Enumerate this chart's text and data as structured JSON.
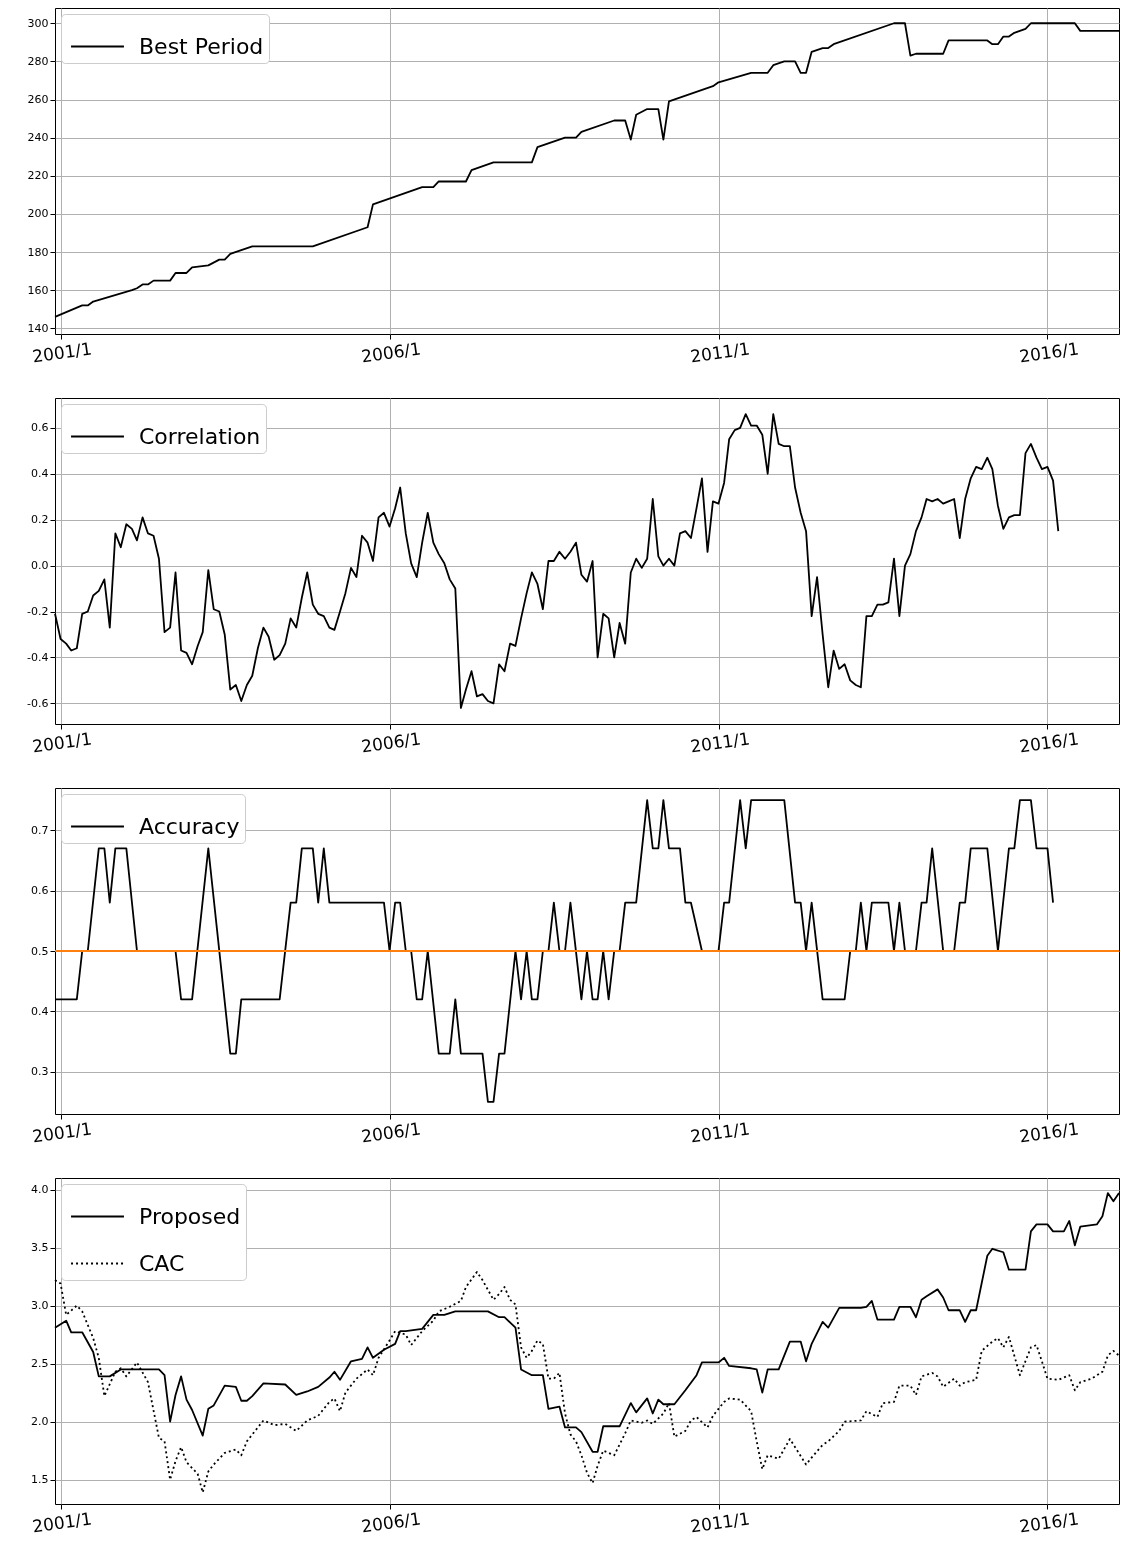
{
  "chart_data": [
    {
      "type": "line",
      "x": [
        "2000-12",
        "2001-05",
        "2001-06",
        "2001-07",
        "2002-02",
        "2002-03",
        "2002-04",
        "2002-05",
        "2002-06",
        "2002-09",
        "2002-10",
        "2002-12",
        "2003-01",
        "2003-04",
        "2003-06",
        "2003-07",
        "2003-08",
        "2003-12",
        "2004-11",
        "2005-09",
        "2005-10",
        "2006-07",
        "2006-09",
        "2006-10",
        "2007-03",
        "2007-04",
        "2007-08",
        "2008-03",
        "2008-04",
        "2008-09",
        "2008-11",
        "2008-12",
        "2009-06",
        "2009-08",
        "2009-09",
        "2009-10",
        "2009-12",
        "2010-02",
        "2010-03",
        "2010-04",
        "2010-12",
        "2011-01",
        "2011-07",
        "2011-10",
        "2011-11",
        "2012-01",
        "2012-03",
        "2012-04",
        "2012-05",
        "2012-06",
        "2012-08",
        "2012-09",
        "2012-10",
        "2013-09",
        "2013-11",
        "2013-12",
        "2014-01",
        "2014-06",
        "2014-07",
        "2015-02",
        "2015-03",
        "2015-04",
        "2015-05",
        "2015-06",
        "2015-07",
        "2015-09",
        "2015-10",
        "2016-06",
        "2016-07",
        "2017-02"
      ],
      "series": [
        {
          "name": "Best Period",
          "color": "#000000",
          "values": [
            146,
            152,
            152,
            154,
            160,
            161,
            163,
            163,
            165,
            165,
            169,
            169,
            172,
            173,
            176,
            176,
            179,
            183,
            183,
            193,
            205,
            214,
            214,
            217,
            217,
            223,
            227,
            227,
            235,
            240,
            240,
            243,
            249,
            249,
            239,
            252,
            255,
            255,
            239,
            259,
            267,
            269,
            274,
            274,
            278,
            280,
            280,
            274,
            274,
            285,
            287,
            287,
            289,
            300,
            300,
            283,
            284,
            284,
            291,
            291,
            289,
            289,
            293,
            293,
            295,
            297,
            300,
            300,
            296,
            296
          ]
        }
      ],
      "xlim": [
        "2000-12",
        "2017-02"
      ],
      "xticks": [
        {
          "value": "2001-01",
          "label": "2001/1"
        },
        {
          "value": "2006-01",
          "label": "2006/1"
        },
        {
          "value": "2011-01",
          "label": "2011/1"
        },
        {
          "value": "2016-01",
          "label": "2016/1"
        }
      ],
      "ylim": [
        137,
        308
      ],
      "yticks": [
        140,
        160,
        180,
        200,
        220,
        240,
        260,
        280,
        300
      ],
      "grid": true,
      "legend": "top left"
    },
    {
      "type": "line",
      "x": [
        "2000-12",
        "2001-01",
        "2001-02",
        "2001-03",
        "2001-04",
        "2001-05",
        "2001-06",
        "2001-07",
        "2001-08",
        "2001-09",
        "2001-10",
        "2001-11",
        "2001-12",
        "2002-01",
        "2002-02",
        "2002-03",
        "2002-04",
        "2002-05",
        "2002-06",
        "2002-07",
        "2002-08",
        "2002-09",
        "2002-10",
        "2002-11",
        "2002-12",
        "2003-01",
        "2003-02",
        "2003-03",
        "2003-04",
        "2003-05",
        "2003-06",
        "2003-07",
        "2003-08",
        "2003-09",
        "2003-10",
        "2003-11",
        "2003-12",
        "2004-01",
        "2004-02",
        "2004-03",
        "2004-04",
        "2004-05",
        "2004-06",
        "2004-07",
        "2004-08",
        "2004-09",
        "2004-10",
        "2004-11",
        "2004-12",
        "2005-01",
        "2005-02",
        "2005-03",
        "2005-04",
        "2005-05",
        "2005-06",
        "2005-07",
        "2005-08",
        "2005-09",
        "2005-10",
        "2005-11",
        "2005-12",
        "2006-01",
        "2006-02",
        "2006-03",
        "2006-04",
        "2006-05",
        "2006-06",
        "2006-07",
        "2006-08",
        "2006-09",
        "2006-10",
        "2006-11",
        "2006-12",
        "2007-01",
        "2007-02",
        "2007-03",
        "2007-04",
        "2007-05",
        "2007-06",
        "2007-07",
        "2007-08",
        "2007-09",
        "2007-10",
        "2007-11",
        "2007-12",
        "2008-01",
        "2008-02",
        "2008-03",
        "2008-04",
        "2008-05",
        "2008-06",
        "2008-07",
        "2008-08",
        "2008-09",
        "2008-10",
        "2008-11",
        "2008-12",
        "2009-01",
        "2009-02",
        "2009-03",
        "2009-04",
        "2009-05",
        "2009-06",
        "2009-07",
        "2009-08",
        "2009-09",
        "2009-10",
        "2009-11",
        "2009-12",
        "2010-01",
        "2010-02",
        "2010-03",
        "2010-04",
        "2010-05",
        "2010-06",
        "2010-07",
        "2010-08",
        "2010-09",
        "2010-10",
        "2010-11",
        "2010-12",
        "2011-01",
        "2011-02",
        "2011-03",
        "2011-04",
        "2011-05",
        "2011-06",
        "2011-07",
        "2011-08",
        "2011-09",
        "2011-10",
        "2011-11",
        "2011-12",
        "2012-01",
        "2012-02",
        "2012-03",
        "2012-04",
        "2012-05",
        "2012-06",
        "2012-07",
        "2012-08",
        "2012-09",
        "2012-10",
        "2012-11",
        "2012-12",
        "2013-01",
        "2013-02",
        "2013-03",
        "2013-04",
        "2013-05",
        "2013-06",
        "2013-07",
        "2013-08",
        "2013-09",
        "2013-10",
        "2013-11",
        "2013-12",
        "2014-01",
        "2014-02",
        "2014-03",
        "2014-04",
        "2014-05",
        "2014-06",
        "2014-07",
        "2014-08",
        "2014-09",
        "2014-10",
        "2014-11",
        "2014-12",
        "2015-01",
        "2015-02",
        "2015-03",
        "2015-04",
        "2015-05",
        "2015-06",
        "2015-07",
        "2015-08",
        "2015-09",
        "2015-10",
        "2015-11",
        "2015-12",
        "2016-01",
        "2016-02",
        "2016-03"
      ],
      "series": [
        {
          "name": "Correlation",
          "color": "#000000",
          "values": [
            -0.21,
            -0.32,
            -0.34,
            -0.37,
            -0.36,
            -0.21,
            -0.2,
            -0.13,
            -0.11,
            -0.06,
            -0.27,
            0.14,
            0.08,
            0.18,
            0.16,
            0.11,
            0.21,
            0.14,
            0.13,
            0.03,
            -0.29,
            -0.27,
            -0.03,
            -0.37,
            -0.38,
            -0.43,
            -0.35,
            -0.29,
            -0.02,
            -0.19,
            -0.2,
            -0.3,
            -0.54,
            -0.52,
            -0.59,
            -0.52,
            -0.48,
            -0.36,
            -0.27,
            -0.31,
            -0.41,
            -0.39,
            -0.34,
            -0.23,
            -0.27,
            -0.14,
            -0.03,
            -0.17,
            -0.21,
            -0.22,
            -0.27,
            -0.28,
            -0.2,
            -0.12,
            -0.01,
            -0.05,
            0.13,
            0.1,
            0.02,
            0.21,
            0.23,
            0.17,
            0.25,
            0.34,
            0.14,
            0.01,
            -0.05,
            0.1,
            0.23,
            0.1,
            0.05,
            0.01,
            -0.06,
            -0.1,
            -0.62,
            -0.54,
            -0.46,
            -0.57,
            -0.56,
            -0.59,
            -0.6,
            -0.43,
            -0.46,
            -0.34,
            -0.35,
            -0.23,
            -0.12,
            -0.03,
            -0.08,
            -0.19,
            0.02,
            0.02,
            0.06,
            0.03,
            0.06,
            0.1,
            -0.04,
            -0.07,
            0.02,
            -0.4,
            -0.21,
            -0.23,
            -0.4,
            -0.25,
            -0.34,
            -0.03,
            0.03,
            -0.01,
            0.03,
            0.29,
            0.04,
            0.0,
            0.03,
            0.0,
            0.14,
            0.15,
            0.12,
            0.25,
            0.38,
            0.06,
            0.28,
            0.27,
            0.36,
            0.55,
            0.59,
            0.6,
            0.66,
            0.61,
            0.61,
            0.57,
            0.4,
            0.66,
            0.53,
            0.52,
            0.52,
            0.34,
            0.23,
            0.15,
            -0.22,
            -0.05,
            -0.3,
            -0.53,
            -0.37,
            -0.45,
            -0.43,
            -0.5,
            -0.52,
            -0.53,
            -0.22,
            -0.22,
            -0.17,
            -0.17,
            -0.16,
            0.03,
            -0.22,
            0.0,
            0.05,
            0.15,
            0.21,
            0.29,
            0.28,
            0.29,
            0.27,
            0.28,
            0.29,
            0.12,
            0.29,
            0.38,
            0.43,
            0.42,
            0.47,
            0.42,
            0.26,
            0.16,
            0.21,
            0.22,
            0.22,
            0.49,
            0.53,
            0.47,
            0.42,
            0.43,
            0.37,
            0.15
          ]
        }
      ],
      "xlim": [
        "2000-12",
        "2017-02"
      ],
      "xticks": [
        {
          "value": "2001-01",
          "label": "2001/1"
        },
        {
          "value": "2006-01",
          "label": "2006/1"
        },
        {
          "value": "2011-01",
          "label": "2011/1"
        },
        {
          "value": "2016-01",
          "label": "2016/1"
        }
      ],
      "ylim": [
        -0.69,
        0.73
      ],
      "yticks": [
        -0.6,
        -0.4,
        -0.2,
        {
          "value": 0,
          "label": "0.0"
        },
        0.2,
        0.4,
        0.6
      ],
      "grid": true,
      "legend": "top left"
    },
    {
      "type": "line",
      "x": [
        "2000-12",
        "2001-04",
        "2001-05",
        "2001-06",
        "2001-08",
        "2001-09",
        "2001-10",
        "2001-11",
        "2002-01",
        "2002-03",
        "2002-10",
        "2002-11",
        "2003-01",
        "2003-04",
        "2003-08",
        "2003-09",
        "2003-10",
        "2004-05",
        "2004-07",
        "2004-08",
        "2004-09",
        "2004-11",
        "2004-12",
        "2005-01",
        "2005-02",
        "2005-12",
        "2006-01",
        "2006-02",
        "2006-03",
        "2006-04",
        "2006-05",
        "2006-06",
        "2006-07",
        "2006-08",
        "2006-10",
        "2006-12",
        "2007-01",
        "2007-02",
        "2007-06",
        "2007-07",
        "2007-08",
        "2007-09",
        "2007-10",
        "2007-12",
        "2008-01",
        "2008-02",
        "2008-03",
        "2008-04",
        "2008-05",
        "2008-06",
        "2008-07",
        "2008-08",
        "2008-09",
        "2008-10",
        "2008-12",
        "2009-01",
        "2009-02",
        "2009-03",
        "2009-04",
        "2009-05",
        "2009-06",
        "2009-07",
        "2009-08",
        "2009-10",
        "2009-12",
        "2010-01",
        "2010-02",
        "2010-03",
        "2010-04",
        "2010-06",
        "2010-07",
        "2010-08",
        "2010-10",
        "2011-01",
        "2011-02",
        "2011-03",
        "2011-05",
        "2011-06",
        "2011-07",
        "2012-01",
        "2012-03",
        "2012-04",
        "2012-05",
        "2012-06",
        "2012-08",
        "2012-12",
        "2013-01",
        "2013-02",
        "2013-03",
        "2013-04",
        "2013-05",
        "2013-08",
        "2013-09",
        "2013-10",
        "2013-11",
        "2014-01",
        "2014-02",
        "2014-03",
        "2014-04",
        "2014-06",
        "2014-08",
        "2014-09",
        "2014-10",
        "2014-11",
        "2015-02",
        "2015-04",
        "2015-06",
        "2015-07",
        "2015-08",
        "2015-10",
        "2015-11",
        "2016-01",
        "2016-02"
      ],
      "series": [
        {
          "name": "Accuracy",
          "color": "#000000",
          "values": [
            0.42,
            0.42,
            0.5,
            0.5,
            0.67,
            0.67,
            0.58,
            0.67,
            0.67,
            0.5,
            0.5,
            0.42,
            0.42,
            0.67,
            0.33,
            0.33,
            0.42,
            0.42,
            0.58,
            0.58,
            0.67,
            0.67,
            0.58,
            0.67,
            0.58,
            0.58,
            0.5,
            0.58,
            0.58,
            0.5,
            0.5,
            0.42,
            0.42,
            0.5,
            0.33,
            0.33,
            0.42,
            0.33,
            0.33,
            0.25,
            0.25,
            0.33,
            0.33,
            0.5,
            0.42,
            0.5,
            0.42,
            0.42,
            0.5,
            0.5,
            0.58,
            0.5,
            0.5,
            0.58,
            0.42,
            0.5,
            0.42,
            0.42,
            0.5,
            0.42,
            0.5,
            0.5,
            0.58,
            0.58,
            0.75,
            0.67,
            0.67,
            0.75,
            0.67,
            0.67,
            0.58,
            0.58,
            0.5,
            0.5,
            0.58,
            0.58,
            0.75,
            0.67,
            0.75,
            0.75,
            0.58,
            0.58,
            0.5,
            0.58,
            0.42,
            0.42,
            0.5,
            0.5,
            0.58,
            0.5,
            0.58,
            0.58,
            0.5,
            0.58,
            0.5,
            0.5,
            0.58,
            0.58,
            0.67,
            0.5,
            0.5,
            0.58,
            0.58,
            0.67,
            0.67,
            0.5,
            0.67,
            0.67,
            0.75,
            0.75,
            0.67,
            0.67,
            0.58
          ]
        }
      ],
      "xlim": [
        "2000-12",
        "2017-02"
      ],
      "xticks": [
        {
          "value": "2001-01",
          "label": "2001/1"
        },
        {
          "value": "2006-01",
          "label": "2006/1"
        },
        {
          "value": "2011-01",
          "label": "2011/1"
        },
        {
          "value": "2016-01",
          "label": "2016/1"
        }
      ],
      "ylim": [
        0.23,
        0.77
      ],
      "yticks": [
        0.3,
        0.4,
        0.5,
        0.6,
        0.7
      ],
      "ref_lines": [
        {
          "axis": "y",
          "value": 0.5,
          "color": "#ff7f0e"
        }
      ],
      "grid": true,
      "legend": "top left"
    },
    {
      "type": "line",
      "series": [
        {
          "name": "Proposed",
          "color": "#000000",
          "line_style": "solid",
          "x": [
            "2000-12",
            "2001-02",
            "2001-03",
            "2001-05",
            "2001-07",
            "2001-08",
            "2001-10",
            "2001-12",
            "2002-07",
            "2002-08",
            "2002-09",
            "2002-10",
            "2002-11",
            "2002-12",
            "2003-01",
            "2003-03",
            "2003-04",
            "2003-05",
            "2003-07",
            "2003-09",
            "2003-10",
            "2003-11",
            "2003-12",
            "2004-02",
            "2004-06",
            "2004-08",
            "2004-10",
            "2004-12",
            "2005-02",
            "2005-03",
            "2005-04",
            "2005-06",
            "2005-08",
            "2005-09",
            "2005-10",
            "2005-12",
            "2006-02",
            "2006-03",
            "2006-04",
            "2006-07",
            "2006-09",
            "2006-11",
            "2007-01",
            "2007-07",
            "2007-09",
            "2007-10",
            "2007-12",
            "2008-01",
            "2008-03",
            "2008-05",
            "2008-06",
            "2008-08",
            "2008-09",
            "2008-11",
            "2008-12",
            "2009-02",
            "2009-03",
            "2009-04",
            "2009-07",
            "2009-09",
            "2009-10",
            "2009-12",
            "2010-01",
            "2010-02",
            "2010-03",
            "2010-05",
            "2010-07",
            "2010-09",
            "2010-10",
            "2011-01",
            "2011-02",
            "2011-03",
            "2011-07",
            "2011-08",
            "2011-09",
            "2011-10",
            "2011-12",
            "2012-02",
            "2012-04",
            "2012-05",
            "2012-06",
            "2012-08",
            "2012-09",
            "2012-11",
            "2013-03",
            "2013-04",
            "2013-05",
            "2013-06",
            "2013-09",
            "2013-10",
            "2013-12",
            "2014-01",
            "2014-02",
            "2014-03",
            "2014-05",
            "2014-06",
            "2014-07",
            "2014-09",
            "2014-10",
            "2014-11",
            "2014-12",
            "2015-02",
            "2015-03",
            "2015-05",
            "2015-06",
            "2015-09",
            "2015-10",
            "2015-11",
            "2016-01",
            "2016-02",
            "2016-04",
            "2016-05",
            "2016-06",
            "2016-07",
            "2016-10",
            "2016-11",
            "2016-12",
            "2017-01",
            "2017-02"
          ],
          "values": [
            2.81,
            2.87,
            2.77,
            2.77,
            2.6,
            2.39,
            2.39,
            2.45,
            2.45,
            2.4,
            2.0,
            2.23,
            2.39,
            2.19,
            2.1,
            1.88,
            2.11,
            2.14,
            2.31,
            2.3,
            2.18,
            2.18,
            2.22,
            2.33,
            2.32,
            2.23,
            2.26,
            2.3,
            2.38,
            2.43,
            2.36,
            2.52,
            2.54,
            2.64,
            2.55,
            2.62,
            2.67,
            2.78,
            2.78,
            2.8,
            2.92,
            2.92,
            2.95,
            2.95,
            2.9,
            2.9,
            2.81,
            2.45,
            2.4,
            2.4,
            2.11,
            2.13,
            1.95,
            1.95,
            1.91,
            1.74,
            1.74,
            1.96,
            1.96,
            2.16,
            2.08,
            2.2,
            2.07,
            2.19,
            2.15,
            2.15,
            2.27,
            2.4,
            2.51,
            2.51,
            2.55,
            2.48,
            2.46,
            2.45,
            2.25,
            2.45,
            2.45,
            2.69,
            2.69,
            2.52,
            2.67,
            2.86,
            2.81,
            2.98,
            2.98,
            2.99,
            3.04,
            2.88,
            2.88,
            2.99,
            2.99,
            2.9,
            3.05,
            3.08,
            3.14,
            3.07,
            2.96,
            2.96,
            2.86,
            2.96,
            2.96,
            3.43,
            3.49,
            3.46,
            3.31,
            3.31,
            3.64,
            3.7,
            3.7,
            3.64,
            3.64,
            3.73,
            3.52,
            3.68,
            3.7,
            3.77,
            3.97,
            3.9,
            3.97
          ]
        },
        {
          "name": "CAC",
          "color": "#000000",
          "line_style": "dotted",
          "x": [
            "2000-12",
            "2001-01",
            "2001-02",
            "2001-04",
            "2001-05",
            "2001-07",
            "2001-08",
            "2001-09",
            "2001-11",
            "2001-12",
            "2002-01",
            "2002-03",
            "2002-05",
            "2002-07",
            "2002-08",
            "2002-09",
            "2002-10",
            "2002-11",
            "2002-12",
            "2003-02",
            "2003-03",
            "2003-04",
            "2003-05",
            "2003-07",
            "2003-09",
            "2003-10",
            "2003-11",
            "2004-01",
            "2004-02",
            "2004-04",
            "2004-06",
            "2004-08",
            "2004-10",
            "2004-12",
            "2005-02",
            "2005-03",
            "2005-04",
            "2005-05",
            "2005-07",
            "2005-09",
            "2005-10",
            "2005-11",
            "2006-01",
            "2006-02",
            "2006-04",
            "2006-05",
            "2006-07",
            "2006-09",
            "2006-10",
            "2006-12",
            "2007-02",
            "2007-03",
            "2007-05",
            "2007-06",
            "2007-08",
            "2007-09",
            "2007-10",
            "2007-11",
            "2007-12",
            "2008-01",
            "2008-02",
            "2008-03",
            "2008-04",
            "2008-05",
            "2008-06",
            "2008-07",
            "2008-08",
            "2008-09",
            "2008-10",
            "2008-11",
            "2008-12",
            "2009-01",
            "2009-02",
            "2009-03",
            "2009-04",
            "2009-06",
            "2009-08",
            "2009-09",
            "2009-11",
            "2009-12",
            "2010-01",
            "2010-03",
            "2010-04",
            "2010-05",
            "2010-07",
            "2010-08",
            "2010-09",
            "2010-11",
            "2010-12",
            "2011-02",
            "2011-03",
            "2011-05",
            "2011-07",
            "2011-08",
            "2011-09",
            "2011-10",
            "2011-12",
            "2012-02",
            "2012-03",
            "2012-05",
            "2012-06",
            "2012-08",
            "2012-09",
            "2012-11",
            "2012-12",
            "2013-03",
            "2013-04",
            "2013-06",
            "2013-07",
            "2013-09",
            "2013-10",
            "2013-12",
            "2014-01",
            "2014-02",
            "2014-04",
            "2014-05",
            "2014-06",
            "2014-08",
            "2014-09",
            "2014-10",
            "2014-12",
            "2015-01",
            "2015-03",
            "2015-04",
            "2015-05",
            "2015-06",
            "2015-08",
            "2015-10",
            "2015-11",
            "2015-12",
            "2016-01",
            "2016-03",
            "2016-05",
            "2016-06",
            "2016-07",
            "2016-09",
            "2016-11",
            "2016-12",
            "2017-01",
            "2017-02"
          ],
          "values": [
            3.22,
            3.19,
            2.92,
            3.0,
            2.95,
            2.72,
            2.55,
            2.22,
            2.43,
            2.46,
            2.39,
            2.51,
            2.34,
            1.86,
            1.83,
            1.5,
            1.66,
            1.78,
            1.65,
            1.55,
            1.39,
            1.57,
            1.63,
            1.73,
            1.76,
            1.71,
            1.83,
            1.95,
            2.01,
            1.97,
            1.98,
            1.92,
            2.01,
            2.05,
            2.17,
            2.2,
            2.09,
            2.25,
            2.37,
            2.45,
            2.4,
            2.55,
            2.7,
            2.78,
            2.75,
            2.66,
            2.78,
            2.87,
            2.95,
            2.99,
            3.04,
            3.16,
            3.29,
            3.22,
            3.05,
            3.1,
            3.16,
            3.05,
            3.01,
            2.64,
            2.55,
            2.61,
            2.7,
            2.67,
            2.37,
            2.37,
            2.42,
            2.07,
            1.89,
            1.83,
            1.71,
            1.56,
            1.47,
            1.62,
            1.75,
            1.71,
            1.9,
            2.01,
            1.99,
            2.01,
            1.98,
            2.07,
            2.16,
            1.87,
            1.92,
            2.01,
            2.04,
            1.95,
            2.05,
            2.17,
            2.2,
            2.19,
            2.09,
            1.83,
            1.59,
            1.71,
            1.68,
            1.85,
            1.78,
            1.63,
            1.69,
            1.8,
            1.83,
            1.92,
            2.0,
            2.01,
            2.09,
            2.04,
            2.16,
            2.17,
            2.31,
            2.31,
            2.23,
            2.39,
            2.42,
            2.39,
            2.3,
            2.37,
            2.31,
            2.34,
            2.36,
            2.61,
            2.69,
            2.72,
            2.64,
            2.73,
            2.4,
            2.64,
            2.66,
            2.52,
            2.37,
            2.36,
            2.4,
            2.27,
            2.34,
            2.37,
            2.43,
            2.57,
            2.61,
            2.57
          ]
        }
      ],
      "xlim": [
        "2000-12",
        "2017-02"
      ],
      "xticks": [
        {
          "value": "2001-01",
          "label": "2001/1"
        },
        {
          "value": "2006-01",
          "label": "2006/1"
        },
        {
          "value": "2011-01",
          "label": "2011/1"
        },
        {
          "value": "2016-01",
          "label": "2016/1"
        }
      ],
      "ylim": [
        1.29,
        4.1
      ],
      "yticks": [
        1.5,
        {
          "value": 2,
          "label": "2.0"
        },
        2.5,
        {
          "value": 3,
          "label": "3.0"
        },
        3.5,
        {
          "value": 4,
          "label": "4.0"
        }
      ],
      "grid": true,
      "legend": "top left"
    }
  ]
}
